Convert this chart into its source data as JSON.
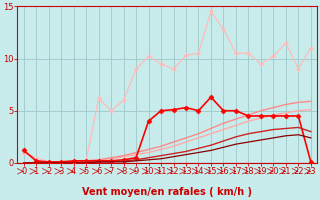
{
  "background_color": "#c8ecec",
  "grid_color": "#a0c8c8",
  "xlabel": "Vent moyen/en rafales ( km/h )",
  "xlim": [
    -0.5,
    23.5
  ],
  "ylim": [
    0,
    15
  ],
  "yticks": [
    0,
    5,
    10,
    15
  ],
  "xticks": [
    0,
    1,
    2,
    3,
    4,
    5,
    6,
    7,
    8,
    9,
    10,
    11,
    12,
    13,
    14,
    15,
    16,
    17,
    18,
    19,
    20,
    21,
    22,
    23
  ],
  "lines": [
    {
      "x": [
        0,
        1,
        2,
        3,
        4,
        5,
        6,
        7,
        8,
        9,
        10,
        11,
        12,
        13,
        14,
        15,
        16,
        17,
        18,
        19,
        20,
        21,
        22,
        23
      ],
      "y": [
        0.0,
        0.0,
        0.0,
        0.0,
        0.1,
        0.2,
        0.3,
        0.4,
        0.6,
        0.8,
        1.0,
        1.3,
        1.6,
        2.0,
        2.4,
        2.8,
        3.2,
        3.6,
        4.0,
        4.3,
        4.6,
        4.8,
        5.0,
        5.1
      ],
      "color": "#ffaaaa",
      "lw": 1.0,
      "marker": null,
      "ls": "-"
    },
    {
      "x": [
        0,
        1,
        2,
        3,
        4,
        5,
        6,
        7,
        8,
        9,
        10,
        11,
        12,
        13,
        14,
        15,
        16,
        17,
        18,
        19,
        20,
        21,
        22,
        23
      ],
      "y": [
        1.0,
        0.5,
        0.1,
        0.1,
        0.1,
        0.2,
        6.2,
        5.0,
        6.0,
        9.0,
        10.2,
        9.5,
        9.0,
        10.3,
        10.5,
        14.5,
        12.8,
        10.5,
        10.5,
        9.5,
        10.2,
        11.5,
        9.0,
        11.0
      ],
      "color": "#ffbbbb",
      "lw": 0.9,
      "marker": "D",
      "markersize": 2.0,
      "ls": "-"
    },
    {
      "x": [
        0,
        1,
        2,
        3,
        4,
        5,
        6,
        7,
        8,
        9,
        10,
        11,
        12,
        13,
        14,
        15,
        16,
        17,
        18,
        19,
        20,
        21,
        22,
        23
      ],
      "y": [
        0.0,
        0.0,
        0.0,
        0.0,
        0.1,
        0.2,
        0.3,
        0.5,
        0.7,
        1.0,
        1.3,
        1.6,
        2.0,
        2.4,
        2.8,
        3.3,
        3.8,
        4.2,
        4.6,
        5.0,
        5.3,
        5.6,
        5.8,
        5.9
      ],
      "color": "#ff8888",
      "lw": 1.0,
      "marker": null,
      "ls": "-"
    },
    {
      "x": [
        0,
        1,
        2,
        3,
        4,
        5,
        6,
        7,
        8,
        9,
        10,
        11,
        12,
        13,
        14,
        15,
        16,
        17,
        18,
        19,
        20,
        21,
        22,
        23
      ],
      "y": [
        1.2,
        0.2,
        0.1,
        0.1,
        0.2,
        0.2,
        0.2,
        0.2,
        0.3,
        0.5,
        4.0,
        5.0,
        5.1,
        5.3,
        5.0,
        6.3,
        5.0,
        5.0,
        4.5,
        4.5,
        4.5,
        4.5,
        4.5,
        0.1
      ],
      "color": "#ff0000",
      "lw": 1.2,
      "marker": "D",
      "markersize": 2.5,
      "ls": "-"
    },
    {
      "x": [
        0,
        1,
        2,
        3,
        4,
        5,
        6,
        7,
        8,
        9,
        10,
        11,
        12,
        13,
        14,
        15,
        16,
        17,
        18,
        19,
        20,
        21,
        22,
        23
      ],
      "y": [
        0.0,
        0.0,
        0.0,
        0.0,
        0.0,
        0.1,
        0.1,
        0.1,
        0.2,
        0.3,
        0.5,
        0.7,
        0.9,
        1.1,
        1.4,
        1.7,
        2.1,
        2.5,
        2.8,
        3.0,
        3.2,
        3.3,
        3.4,
        3.0
      ],
      "color": "#cc2222",
      "lw": 1.0,
      "marker": null,
      "ls": "-"
    },
    {
      "x": [
        0,
        1,
        2,
        3,
        4,
        5,
        6,
        7,
        8,
        9,
        10,
        11,
        12,
        13,
        14,
        15,
        16,
        17,
        18,
        19,
        20,
        21,
        22,
        23
      ],
      "y": [
        0.0,
        0.0,
        0.0,
        0.0,
        0.0,
        0.0,
        0.1,
        0.1,
        0.1,
        0.2,
        0.3,
        0.4,
        0.6,
        0.8,
        1.0,
        1.2,
        1.5,
        1.8,
        2.0,
        2.2,
        2.4,
        2.6,
        2.7,
        2.4
      ],
      "color": "#880000",
      "lw": 0.9,
      "marker": null,
      "ls": "-"
    }
  ],
  "tick_label_fontsize": 6,
  "xlabel_fontsize": 7,
  "axis_color": "#cc0000",
  "tick_color": "#cc0000"
}
